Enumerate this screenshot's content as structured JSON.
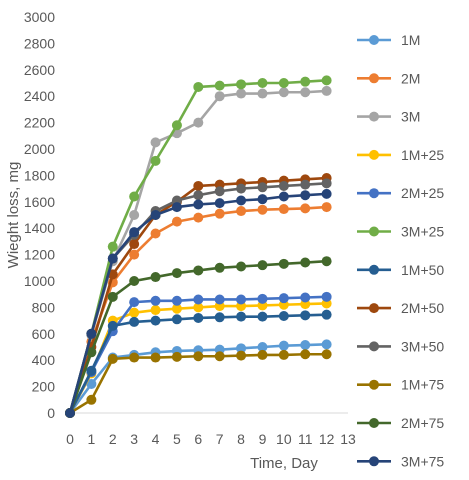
{
  "chart_data": {
    "type": "line",
    "title": "",
    "xlabel": "Time, Day",
    "ylabel": "Wieght loss, mg",
    "xlim": [
      0,
      13
    ],
    "ylim": [
      0,
      3000
    ],
    "xticks": [
      0,
      1,
      2,
      3,
      4,
      5,
      6,
      7,
      8,
      9,
      10,
      11,
      12,
      13
    ],
    "yticks": [
      0,
      200,
      400,
      600,
      800,
      1000,
      1200,
      1400,
      1600,
      1800,
      2000,
      2200,
      2400,
      2600,
      2800,
      3000
    ],
    "grid": false,
    "legend_position": "right",
    "x": [
      0,
      1,
      2,
      3,
      4,
      5,
      6,
      7,
      8,
      9,
      10,
      11,
      12
    ],
    "series": [
      {
        "name": "1M",
        "color": "#5B9BD5",
        "values": [
          0,
          220,
          420,
          440,
          460,
          470,
          475,
          480,
          490,
          500,
          510,
          515,
          520
        ]
      },
      {
        "name": "2M",
        "color": "#ED7D31",
        "values": [
          0,
          540,
          990,
          1200,
          1360,
          1450,
          1480,
          1510,
          1530,
          1540,
          1545,
          1550,
          1560
        ]
      },
      {
        "name": "3M",
        "color": "#A5A5A5",
        "values": [
          0,
          590,
          1150,
          1500,
          2050,
          2120,
          2200,
          2400,
          2420,
          2420,
          2430,
          2430,
          2440
        ]
      },
      {
        "name": "1M+25",
        "color": "#FFC000",
        "values": [
          0,
          300,
          700,
          760,
          780,
          790,
          800,
          810,
          810,
          815,
          820,
          825,
          830
        ]
      },
      {
        "name": "2M+25",
        "color": "#4472C4",
        "values": [
          0,
          310,
          620,
          840,
          850,
          850,
          860,
          860,
          860,
          865,
          870,
          875,
          880
        ]
      },
      {
        "name": "3M+25",
        "color": "#70AD47",
        "values": [
          0,
          600,
          1260,
          1640,
          1910,
          2180,
          2470,
          2480,
          2490,
          2500,
          2500,
          2510,
          2520
        ]
      },
      {
        "name": "1M+50",
        "color": "#255E91",
        "values": [
          0,
          320,
          660,
          690,
          700,
          710,
          720,
          725,
          730,
          730,
          735,
          740,
          745
        ]
      },
      {
        "name": "2M+50",
        "color": "#9E480E",
        "values": [
          0,
          500,
          1050,
          1280,
          1500,
          1600,
          1720,
          1730,
          1740,
          1750,
          1760,
          1770,
          1780
        ]
      },
      {
        "name": "3M+50",
        "color": "#636363",
        "values": [
          0,
          600,
          1170,
          1350,
          1530,
          1610,
          1650,
          1680,
          1700,
          1710,
          1720,
          1730,
          1740
        ]
      },
      {
        "name": "1M+75",
        "color": "#997300",
        "values": [
          0,
          100,
          410,
          420,
          420,
          425,
          430,
          430,
          435,
          440,
          440,
          445,
          445
        ]
      },
      {
        "name": "2M+75",
        "color": "#43682B",
        "values": [
          0,
          460,
          880,
          1000,
          1030,
          1060,
          1080,
          1100,
          1110,
          1120,
          1130,
          1140,
          1150
        ]
      },
      {
        "name": "3M+75",
        "color": "#264478",
        "values": [
          0,
          600,
          1170,
          1370,
          1500,
          1560,
          1580,
          1590,
          1610,
          1620,
          1640,
          1650,
          1660
        ]
      }
    ]
  }
}
